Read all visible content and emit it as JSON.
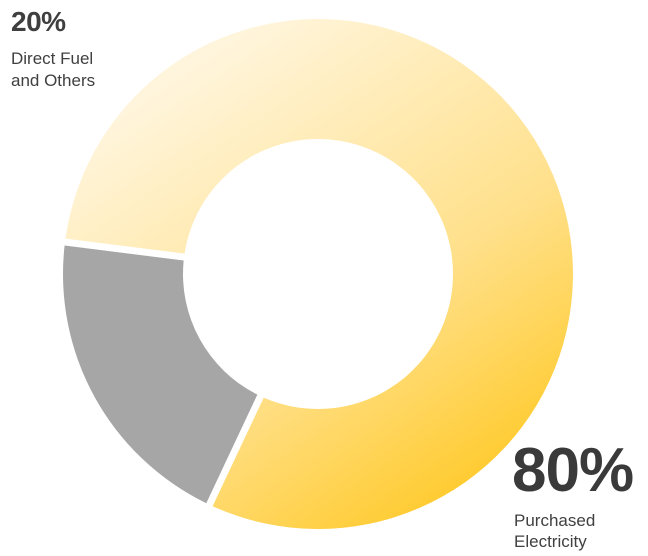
{
  "chart_data": {
    "type": "pie",
    "variant": "donut",
    "slices": [
      {
        "value_text": "20%",
        "label_lines": [
          "Direct Fuel",
          "and Others"
        ],
        "value": 20,
        "color": "#a6a6a6"
      },
      {
        "value_text": "80%",
        "label_lines": [
          "Purchased",
          "Electricity"
        ],
        "value": 80,
        "color_light": "#fff3d6",
        "color_dark": "#ffc81e"
      }
    ],
    "legend": "none"
  }
}
